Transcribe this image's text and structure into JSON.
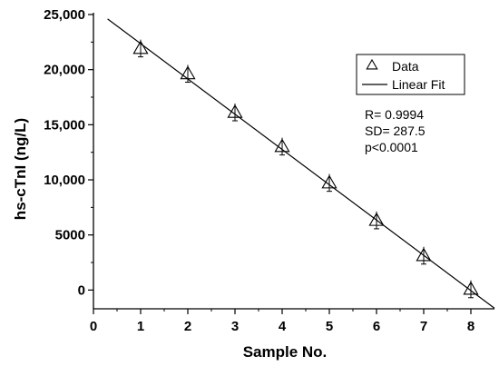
{
  "chart_data": {
    "type": "scatter",
    "xlabel": "Sample No.",
    "ylabel": "hs-cTnI (ng/L)",
    "xlim": [
      0,
      8.5
    ],
    "ylim": [
      -1700,
      25000
    ],
    "x_ticks": [
      0,
      1,
      2,
      3,
      4,
      5,
      6,
      7,
      8
    ],
    "x_tick_labels": [
      "0",
      "1",
      "2",
      "3",
      "4",
      "5",
      "6",
      "7",
      "8"
    ],
    "y_ticks": [
      0,
      5000,
      10000,
      15000,
      20000,
      25000
    ],
    "y_tick_labels": [
      "0",
      "5000",
      "10,000",
      "15,000",
      "20,000",
      "25,000"
    ],
    "series": [
      {
        "name": "Data",
        "marker": "triangle-open",
        "x": [
          1,
          2,
          3,
          4,
          5,
          6,
          7,
          8
        ],
        "y": [
          21900,
          19600,
          16100,
          13000,
          9700,
          6300,
          3100,
          50
        ]
      },
      {
        "name": "Linear Fit",
        "kind": "line",
        "x": [
          0.3,
          8.5
        ],
        "y": [
          24600,
          -1650
        ]
      }
    ],
    "legend": {
      "position": "top-right",
      "entries": [
        "Data",
        "Linear Fit"
      ]
    },
    "annotations": [
      "R= 0.9994",
      "SD= 287.5",
      "p<0.0001"
    ],
    "grid": false
  }
}
